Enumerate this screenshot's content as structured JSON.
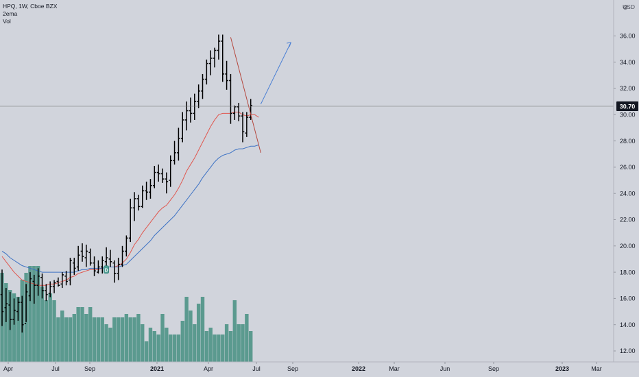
{
  "legend": {
    "title": "HPQ, 1W, Cboe BZX",
    "ind1": "2ema",
    "ind2": "Vol"
  },
  "currency": "USD",
  "icons": {
    "settings": "gear-icon",
    "event": "dividend-marker-icon"
  },
  "colors": {
    "background": "#d1d4dc",
    "bars": "#000000",
    "volume": "#5b9a8f",
    "ema_fast": "#e0574f",
    "ema_slow": "#3d72c4",
    "trend_down": "#b5473d",
    "trend_up": "#4a7fd4",
    "price_label_bg": "#131722",
    "crosshair": "#707070"
  },
  "event_marker": "D",
  "chart_data": {
    "type": "bar",
    "ylim": [
      11.2,
      37.2
    ],
    "y_ticks": [
      "12.00",
      "14.00",
      "16.00",
      "18.00",
      "20.00",
      "22.00",
      "24.00",
      "26.00",
      "28.00",
      "30.00",
      "32.00",
      "34.00",
      "36.00"
    ],
    "current_price": "30.70",
    "x_labels": [
      "Apr",
      "Jul",
      "Sep",
      "2021",
      "Apr",
      "Jul",
      "Sep",
      "2022",
      "Mar",
      "Jun",
      "Sep",
      "2023",
      "Mar"
    ],
    "x_labels_bold": [
      "2021",
      "2022",
      "2023"
    ],
    "ohlc": [
      [
        16.3,
        18.2,
        13.9,
        15.0
      ],
      [
        15.3,
        16.8,
        14.2,
        15.6
      ],
      [
        15.5,
        16.5,
        13.6,
        14.4
      ],
      [
        14.4,
        16.0,
        14.0,
        15.1
      ],
      [
        15.0,
        16.1,
        14.3,
        15.7
      ],
      [
        15.7,
        16.2,
        13.4,
        14.0
      ],
      [
        14.1,
        17.1,
        14.2,
        16.5
      ],
      [
        16.2,
        18.0,
        15.8,
        17.5
      ],
      [
        17.3,
        17.8,
        15.6,
        17.0
      ],
      [
        17.0,
        18.3,
        16.2,
        17.7
      ],
      [
        17.6,
        17.9,
        16.0,
        16.6
      ],
      [
        16.6,
        17.1,
        15.8,
        16.3
      ],
      [
        16.4,
        17.3,
        16.1,
        16.9
      ],
      [
        16.9,
        17.4,
        16.4,
        17.2
      ],
      [
        17.3,
        17.6,
        16.9,
        17.0
      ],
      [
        17.1,
        18.0,
        16.8,
        17.8
      ],
      [
        17.7,
        18.1,
        17.0,
        17.3
      ],
      [
        17.4,
        19.1,
        17.0,
        18.9
      ],
      [
        18.7,
        19.1,
        17.8,
        18.3
      ],
      [
        18.4,
        20.0,
        18.1,
        19.3
      ],
      [
        19.6,
        20.2,
        18.8,
        19.2
      ],
      [
        19.1,
        20.1,
        18.4,
        19.6
      ],
      [
        19.5,
        19.8,
        18.5,
        18.7
      ],
      [
        18.7,
        19.2,
        17.7,
        18.1
      ],
      [
        18.0,
        18.9,
        17.9,
        18.4
      ],
      [
        18.4,
        19.2,
        17.9,
        18.9
      ],
      [
        18.8,
        19.9,
        18.5,
        19.1
      ],
      [
        19.0,
        19.7,
        18.4,
        18.8
      ],
      [
        18.7,
        18.9,
        17.2,
        17.9
      ],
      [
        17.9,
        19.1,
        17.4,
        18.6
      ],
      [
        18.6,
        20.0,
        18.4,
        19.6
      ],
      [
        19.6,
        20.8,
        19.2,
        20.6
      ],
      [
        20.6,
        23.6,
        20.3,
        22.9
      ],
      [
        22.9,
        24.1,
        21.9,
        23.6
      ],
      [
        23.6,
        23.9,
        22.7,
        23.0
      ],
      [
        23.0,
        24.6,
        22.9,
        24.2
      ],
      [
        24.2,
        24.9,
        23.5,
        24.1
      ],
      [
        24.1,
        25.1,
        23.6,
        24.6
      ],
      [
        24.6,
        26.1,
        24.4,
        25.6
      ],
      [
        25.6,
        26.2,
        24.9,
        25.5
      ],
      [
        25.5,
        25.9,
        24.8,
        25.1
      ],
      [
        25.1,
        25.6,
        24.0,
        24.9
      ],
      [
        25.0,
        26.9,
        24.5,
        26.5
      ],
      [
        26.5,
        28.0,
        26.2,
        27.1
      ],
      [
        27.1,
        29.0,
        26.5,
        28.2
      ],
      [
        28.2,
        30.2,
        27.9,
        29.6
      ],
      [
        29.6,
        31.0,
        28.8,
        30.3
      ],
      [
        30.3,
        31.3,
        29.4,
        30.1
      ],
      [
        30.1,
        31.6,
        29.6,
        31.0
      ],
      [
        31.0,
        32.3,
        30.5,
        31.8
      ],
      [
        31.8,
        33.1,
        31.2,
        32.7
      ],
      [
        32.7,
        34.2,
        32.3,
        33.9
      ],
      [
        33.9,
        34.9,
        33.0,
        34.3
      ],
      [
        34.3,
        35.1,
        33.6,
        34.9
      ],
      [
        34.9,
        36.1,
        34.2,
        35.6
      ],
      [
        35.6,
        36.1,
        32.5,
        33.1
      ],
      [
        33.1,
        34.1,
        31.9,
        32.6
      ],
      [
        32.6,
        33.1,
        29.3,
        30.1
      ],
      [
        30.1,
        30.7,
        29.6,
        30.6
      ],
      [
        30.6,
        30.9,
        29.5,
        29.9
      ],
      [
        29.9,
        30.2,
        27.9,
        28.7
      ],
      [
        28.6,
        30.2,
        28.3,
        29.8
      ],
      [
        29.8,
        31.2,
        29.6,
        30.7
      ]
    ],
    "volume": [
      2.6,
      2.3,
      2.1,
      2.0,
      1.9,
      2.4,
      2.6,
      2.8,
      2.8,
      2.8,
      2.2,
      1.8,
      2.0,
      1.8,
      1.3,
      1.5,
      1.3,
      1.3,
      1.4,
      1.6,
      1.6,
      1.4,
      1.6,
      1.3,
      1.3,
      1.3,
      1.1,
      1.0,
      1.3,
      1.3,
      1.3,
      1.4,
      1.3,
      1.3,
      1.4,
      1.1,
      0.6,
      1.0,
      0.9,
      0.8,
      1.4,
      1.0,
      0.8,
      0.8,
      0.8,
      1.2,
      1.9,
      1.5,
      1.1,
      1.7,
      1.9,
      0.9,
      1.0,
      0.8,
      0.8,
      0.8,
      1.1,
      0.9,
      1.8,
      1.1,
      1.1,
      1.4,
      0.9
    ],
    "ema_fast": [
      19.2,
      18.8,
      18.4,
      18.0,
      17.7,
      17.4,
      17.3,
      17.2,
      17.1,
      17.0,
      17.0,
      17.0,
      17.1,
      17.1,
      17.2,
      17.3,
      17.4,
      17.6,
      17.7,
      17.9,
      18.0,
      18.1,
      18.2,
      18.2,
      18.2,
      18.3,
      18.4,
      18.4,
      18.4,
      18.5,
      18.7,
      19.0,
      19.5,
      20.1,
      20.5,
      21.0,
      21.4,
      21.8,
      22.2,
      22.6,
      22.9,
      23.1,
      23.5,
      23.9,
      24.4,
      25.0,
      25.7,
      26.2,
      26.7,
      27.3,
      27.9,
      28.5,
      29.1,
      29.6,
      30.0,
      30.1,
      30.1,
      30.1,
      30.2,
      30.2,
      30.0,
      29.9,
      30.0
    ],
    "ema_slow": [
      19.6,
      19.4,
      19.1,
      18.9,
      18.7,
      18.5,
      18.4,
      18.3,
      18.2,
      18.1,
      18.0,
      18.0,
      18.0,
      18.0,
      18.0,
      18.0,
      18.0,
      18.0,
      18.0,
      18.1,
      18.2,
      18.2,
      18.3,
      18.3,
      18.3,
      18.3,
      18.4,
      18.4,
      18.4,
      18.4,
      18.5,
      18.6,
      18.9,
      19.2,
      19.5,
      19.8,
      20.1,
      20.4,
      20.8,
      21.1,
      21.4,
      21.7,
      22.0,
      22.3,
      22.7,
      23.1,
      23.5,
      23.9,
      24.3,
      24.7,
      25.2,
      25.6,
      26.0,
      26.4,
      26.7,
      26.9,
      27.0,
      27.1,
      27.3,
      27.4,
      27.4,
      27.5,
      27.6
    ],
    "ema_fast_tail": [
      30.0,
      29.8
    ],
    "ema_slow_tail": [
      27.6,
      27.7
    ],
    "trend_down": [
      [
        35.9,
        57
      ],
      [
        27.1,
        64.5
      ]
    ],
    "trend_up": [
      [
        30.8,
        64.5
      ],
      [
        35.5,
        72
      ]
    ],
    "event_index": 26,
    "event_price": 18.2
  }
}
